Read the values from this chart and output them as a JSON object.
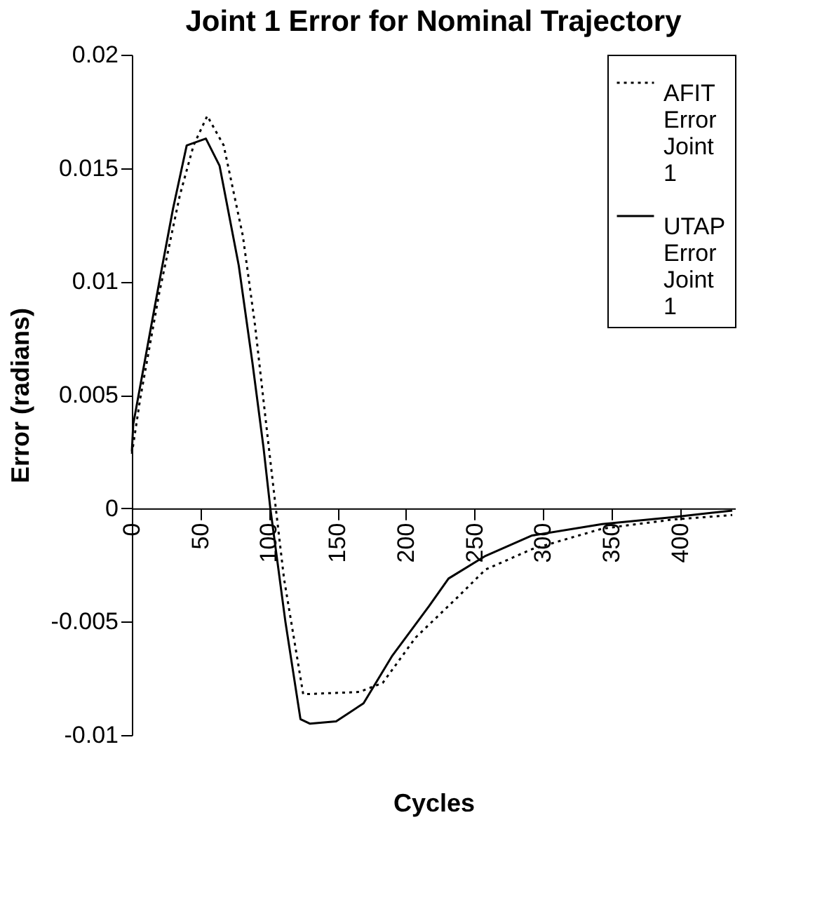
{
  "chart_data": {
    "type": "line",
    "title": "Joint 1 Error for Nominal Trajectory",
    "xlabel": "Cycles",
    "ylabel": "Error (radians)",
    "xlim": [
      0,
      440
    ],
    "xticks": [
      0,
      50,
      100,
      150,
      200,
      250,
      300,
      350,
      400
    ],
    "ylim": [
      -0.01,
      0.02
    ],
    "yticks": [
      -0.01,
      -0.005,
      0,
      0.005,
      0.01,
      0.015,
      0.02
    ],
    "grid": false,
    "legend": "top right",
    "series": [
      {
        "name": "AFIT Error Joint 1",
        "color": "#000000",
        "line_style": "dotted",
        "x": [
          0,
          6,
          20,
          35,
          45,
          55,
          67,
          81,
          90,
          98,
          105,
          111,
          125,
          166,
          183,
          207,
          238,
          258,
          292,
          343,
          394,
          438
        ],
        "values": [
          0.0024,
          0.0048,
          0.0095,
          0.0138,
          0.016,
          0.0173,
          0.016,
          0.012,
          0.008,
          0.0037,
          0,
          -0.0031,
          -0.0082,
          -0.0081,
          -0.0077,
          -0.0057,
          -0.0039,
          -0.0027,
          -0.0018,
          -0.0009,
          -0.0005,
          -0.0003
        ]
      },
      {
        "name": "UTAP Error Joint 1",
        "color": "#000000",
        "line_style": "solid",
        "x": [
          0,
          1,
          14,
          21,
          30,
          40,
          54,
          64,
          78,
          88,
          96,
          101,
          112,
          123,
          130,
          149,
          169,
          190,
          217,
          231,
          258,
          292,
          343,
          394,
          438
        ],
        "values": [
          0.0025,
          0.0037,
          0.008,
          0.0103,
          0.0132,
          0.016,
          0.0163,
          0.0151,
          0.0107,
          0.0064,
          0.0027,
          0,
          -0.005,
          -0.0093,
          -0.0095,
          -0.0094,
          -0.0086,
          -0.0065,
          -0.0043,
          -0.0031,
          -0.0021,
          -0.0012,
          -0.0007,
          -0.0004,
          -0.0001
        ]
      }
    ]
  }
}
